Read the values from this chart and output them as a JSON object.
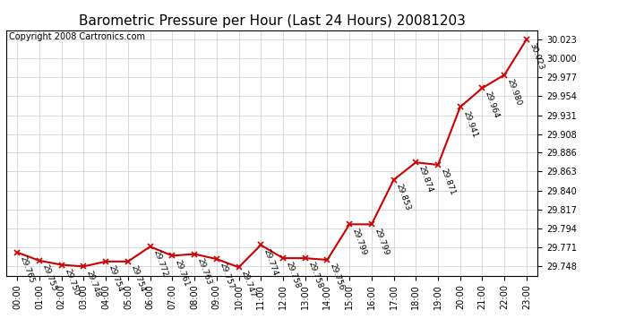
{
  "title": "Barometric Pressure per Hour (Last 24 Hours) 20081203",
  "copyright": "Copyright 2008 Cartronics.com",
  "hours": [
    "00:00",
    "01:00",
    "02:00",
    "03:00",
    "04:00",
    "05:00",
    "06:00",
    "07:00",
    "08:00",
    "09:00",
    "10:00",
    "11:00",
    "12:00",
    "13:00",
    "14:00",
    "15:00",
    "16:00",
    "17:00",
    "18:00",
    "19:00",
    "20:00",
    "21:00",
    "22:00",
    "23:00"
  ],
  "values": [
    29.765,
    29.755,
    29.75,
    29.748,
    29.754,
    29.754,
    29.772,
    29.761,
    29.763,
    29.757,
    29.747,
    29.774,
    29.758,
    29.758,
    29.756,
    29.799,
    29.799,
    29.853,
    29.874,
    29.871,
    29.941,
    29.964,
    29.98,
    30.023
  ],
  "line_color": "#cc0000",
  "marker_color": "#cc0000",
  "bg_color": "#ffffff",
  "grid_color": "#cccccc",
  "border_color": "#000000",
  "title_color": "#000000",
  "copyright_color": "#000000",
  "ytick_labels": [
    29.748,
    29.771,
    29.794,
    29.817,
    29.84,
    29.863,
    29.886,
    29.908,
    29.931,
    29.954,
    29.977,
    30.0,
    30.023
  ],
  "ymin": 29.737,
  "ymax": 30.034,
  "label_fontsize": 7,
  "title_fontsize": 11,
  "copyright_fontsize": 7,
  "data_label_fontsize": 6.5
}
